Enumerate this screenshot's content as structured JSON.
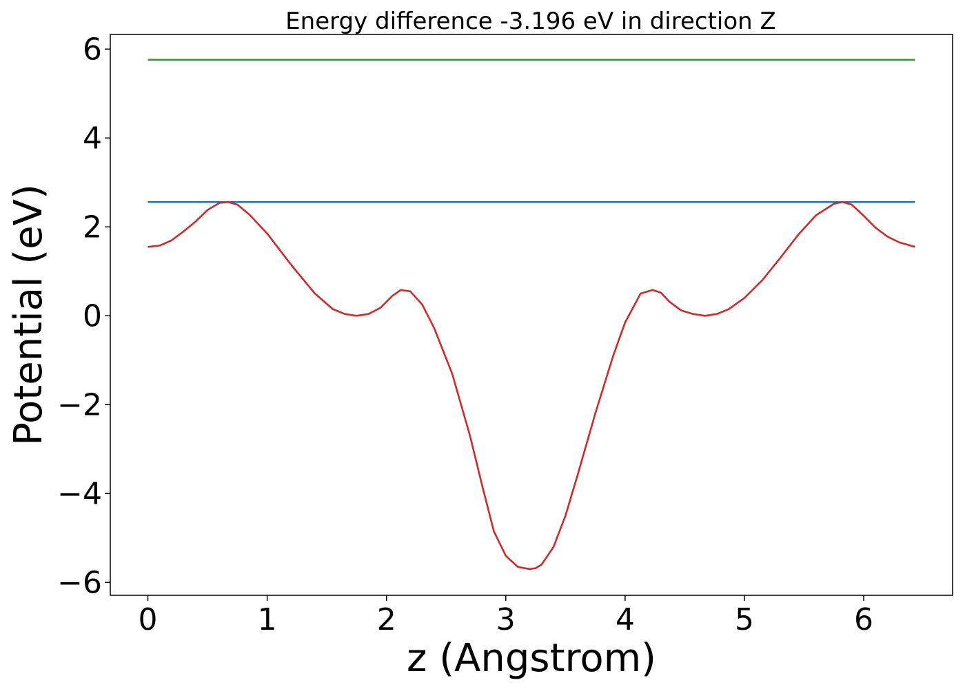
{
  "chart_data": {
    "type": "line",
    "title": "Energy difference -3.196 eV in direction Z",
    "xlabel": "z (Angstrom)",
    "ylabel": "Potential (eV)",
    "xlim": [
      -0.315,
      6.745
    ],
    "ylim": [
      -6.29,
      6.33
    ],
    "xticks": [
      0,
      1,
      2,
      3,
      4,
      5,
      6
    ],
    "xtick_labels": [
      "0",
      "1",
      "2",
      "3",
      "4",
      "5",
      "6"
    ],
    "yticks": [
      -6,
      -4,
      -2,
      0,
      2,
      4,
      6
    ],
    "ytick_labels": [
      "−6",
      "−4",
      "−2",
      "0",
      "2",
      "4",
      "6"
    ],
    "grid": false,
    "series": [
      {
        "color": "#2ca02c",
        "x": [
          0,
          6.43
        ],
        "y": [
          5.76,
          5.76
        ]
      },
      {
        "color": "#1f77b4",
        "x": [
          0,
          6.43
        ],
        "y": [
          2.56,
          2.56
        ]
      },
      {
        "color": "#d62728",
        "x": [
          0,
          0.1,
          0.2,
          0.3,
          0.4,
          0.5,
          0.6,
          0.67,
          0.75,
          0.85,
          1.0,
          1.2,
          1.4,
          1.55,
          1.65,
          1.75,
          1.85,
          1.95,
          2.05,
          2.12,
          2.2,
          2.3,
          2.4,
          2.55,
          2.7,
          2.8,
          2.9,
          3.0,
          3.1,
          3.2,
          3.25,
          3.3,
          3.4,
          3.5,
          3.6,
          3.75,
          3.9,
          4.0,
          4.13,
          4.23,
          4.3,
          4.37,
          4.47,
          4.57,
          4.67,
          4.77,
          4.87,
          5.0,
          5.15,
          5.3,
          5.45,
          5.6,
          5.75,
          5.82,
          5.9,
          6.0,
          6.1,
          6.2,
          6.3,
          6.43
        ],
        "y": [
          1.55,
          1.58,
          1.7,
          1.9,
          2.12,
          2.38,
          2.54,
          2.56,
          2.5,
          2.28,
          1.85,
          1.15,
          0.5,
          0.15,
          0.04,
          0.0,
          0.04,
          0.18,
          0.45,
          0.58,
          0.55,
          0.25,
          -0.28,
          -1.3,
          -2.7,
          -3.8,
          -4.85,
          -5.4,
          -5.65,
          -5.7,
          -5.68,
          -5.6,
          -5.2,
          -4.5,
          -3.6,
          -2.2,
          -0.9,
          -0.15,
          0.5,
          0.58,
          0.52,
          0.32,
          0.12,
          0.04,
          0.0,
          0.04,
          0.15,
          0.4,
          0.8,
          1.3,
          1.82,
          2.26,
          2.52,
          2.56,
          2.5,
          2.25,
          1.98,
          1.78,
          1.65,
          1.55
        ]
      }
    ]
  }
}
